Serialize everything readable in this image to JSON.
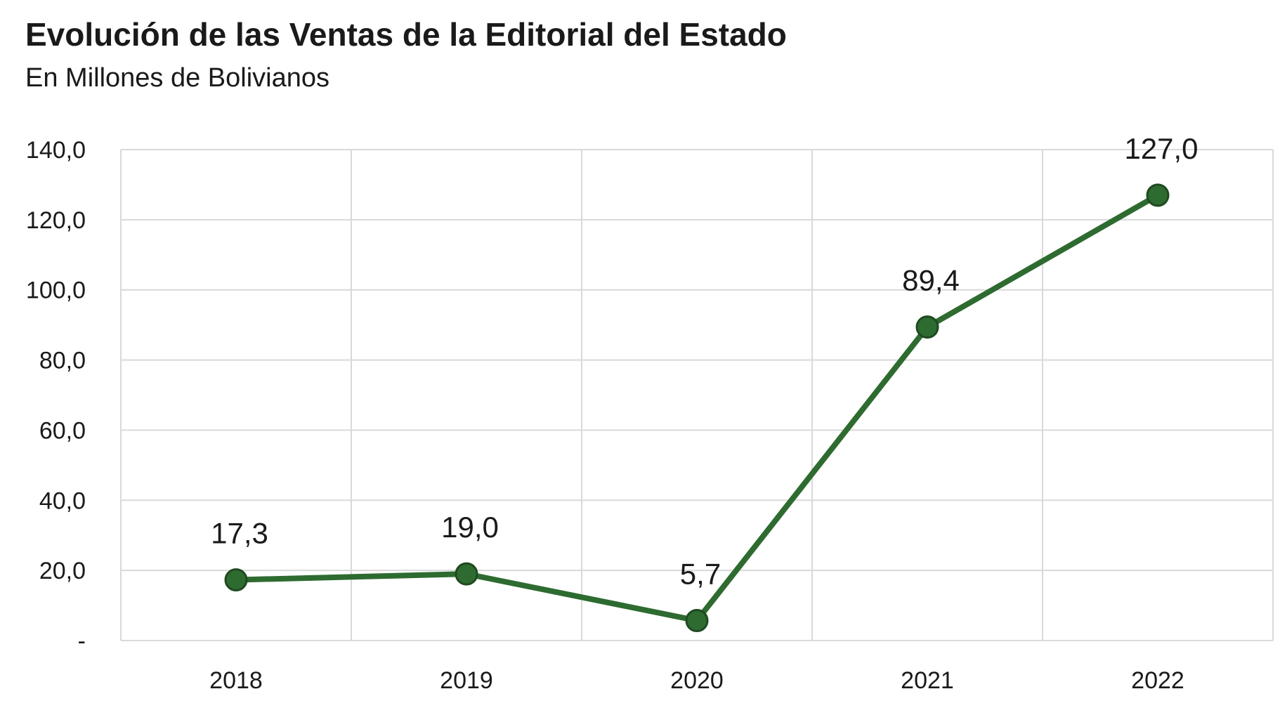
{
  "chart_data": {
    "type": "line",
    "title": "Evolución de las Ventas de la Editorial del Estado",
    "subtitle": "En Millones de Bolivianos",
    "categories": [
      "2018",
      "2019",
      "2020",
      "2021",
      "2022"
    ],
    "series": [
      {
        "values": [
          17.3,
          19.0,
          5.7,
          89.4,
          127.0
        ],
        "data_labels": [
          "17,3",
          "19,0",
          "5,7",
          "89,4",
          "127,0"
        ],
        "color": "#2e6b30"
      }
    ],
    "y_ticks": [
      {
        "value": 0,
        "label": "-"
      },
      {
        "value": 20,
        "label": "20,0"
      },
      {
        "value": 40,
        "label": "40,0"
      },
      {
        "value": 60,
        "label": "60,0"
      },
      {
        "value": 80,
        "label": "80,0"
      },
      {
        "value": 100,
        "label": "100,0"
      },
      {
        "value": 120,
        "label": "120,0"
      },
      {
        "value": 140,
        "label": "140,0"
      }
    ],
    "ylim": [
      0,
      140
    ],
    "grid": true,
    "legend": "none",
    "marker": "circle",
    "marker_color": "#2e6b30",
    "grid_color": "#d9d9d9"
  }
}
